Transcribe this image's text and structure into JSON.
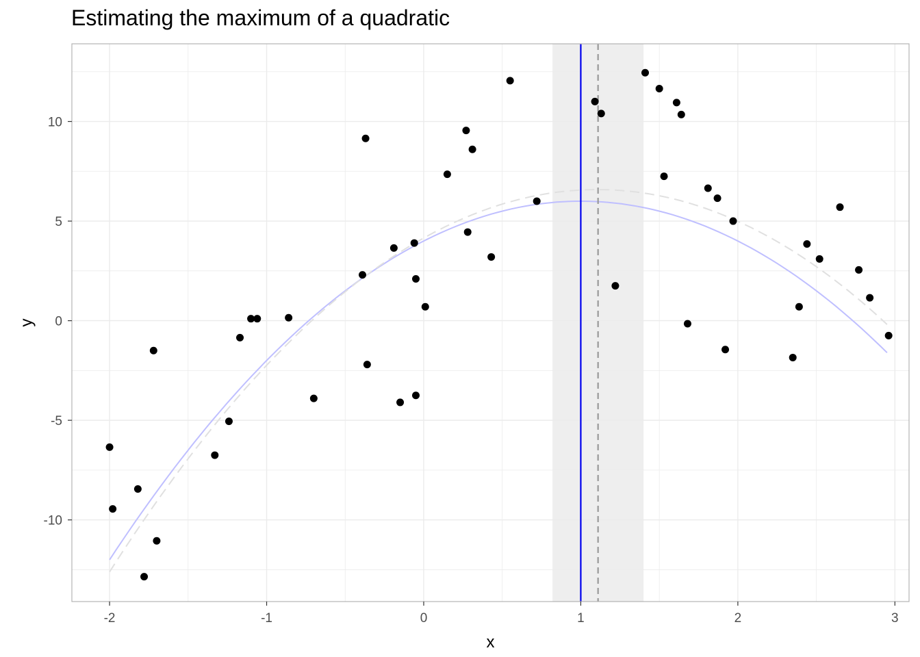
{
  "chart_data": {
    "type": "scatter",
    "title": "Estimating the maximum of a quadratic",
    "xlabel": "x",
    "ylabel": "y",
    "xlim": [
      -2.24,
      3.09
    ],
    "ylim": [
      -14.1,
      13.9
    ],
    "x_ticks": [
      -2,
      -1,
      0,
      1,
      2,
      3
    ],
    "x_tick_labels": [
      "-2",
      "-1",
      "0",
      "1",
      "2",
      "3"
    ],
    "y_ticks": [
      -10,
      -5,
      0,
      5,
      10
    ],
    "y_tick_labels": [
      "-10",
      "-5",
      "0",
      "5",
      "10"
    ],
    "grid": true,
    "theme": "light",
    "colors": {
      "points": "#000000",
      "true_curve": "#bfbfff",
      "fitted_curve": "#e0e0e0",
      "true_max_line": "#0000ee",
      "estimated_max_line": "#999999",
      "interval_band": "#eeeeee",
      "grid": "#ebebeb",
      "panel_border": "#b3b3b3"
    },
    "points": {
      "x": [
        -2.0,
        -1.98,
        -1.82,
        -1.78,
        -1.72,
        -1.7,
        -1.33,
        -1.24,
        -1.17,
        -1.1,
        -1.06,
        -0.86,
        -0.7,
        -0.39,
        -0.37,
        -0.36,
        -0.19,
        -0.15,
        -0.06,
        -0.05,
        -0.05,
        0.01,
        0.15,
        0.27,
        0.28,
        0.31,
        0.43,
        0.55,
        0.72,
        1.09,
        1.13,
        1.22,
        1.41,
        1.5,
        1.53,
        1.61,
        1.64,
        1.68,
        1.81,
        1.87,
        1.92,
        1.97,
        2.35,
        2.39,
        2.44,
        2.52,
        2.65,
        2.77,
        2.84,
        2.96
      ],
      "y": [
        -6.35,
        -9.45,
        -8.45,
        -12.85,
        -1.5,
        -11.05,
        -6.75,
        -5.05,
        -0.85,
        0.1,
        0.1,
        0.15,
        -3.9,
        2.3,
        9.15,
        -2.2,
        3.65,
        -4.1,
        3.9,
        2.1,
        -3.75,
        0.7,
        7.35,
        9.55,
        4.45,
        8.6,
        3.2,
        12.05,
        6.0,
        11.0,
        10.4,
        1.75,
        12.45,
        11.65,
        7.25,
        10.95,
        10.35,
        -0.15,
        6.65,
        6.15,
        -1.45,
        5.0,
        -1.85,
        0.7,
        3.85,
        3.1,
        5.7,
        2.55,
        1.15,
        -0.75
      ]
    },
    "series": [
      {
        "coefficients": {
          "a": -2.0,
          "b": 4.0,
          "c": 4.0
        },
        "x_range": [
          -2.0,
          2.95
        ]
      },
      {
        "coefficients": {
          "a": -1.99,
          "b": 4.4,
          "c": 4.15
        },
        "x_range": [
          -2.0,
          2.95
        ]
      }
    ],
    "vertical_lines": [
      {
        "x": 1.0
      },
      {
        "x": 1.11
      }
    ],
    "interval": {
      "x_min": 0.82,
      "x_max": 1.4
    }
  }
}
